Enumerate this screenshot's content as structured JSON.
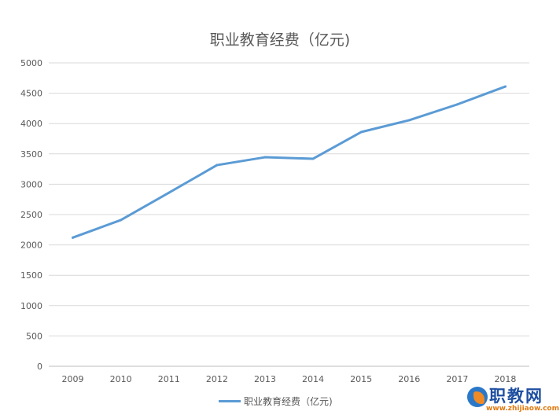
{
  "chart_data": {
    "type": "line",
    "title": "职业教育经费（亿元)",
    "categories": [
      "2009",
      "2010",
      "2011",
      "2012",
      "2013",
      "2014",
      "2015",
      "2016",
      "2017",
      "2018"
    ],
    "series": [
      {
        "name": "职业教育经费（亿元)",
        "values": [
          2120,
          2410,
          2860,
          3315,
          3445,
          3420,
          3860,
          4055,
          4315,
          4610
        ],
        "color": "#5b9bd5"
      }
    ],
    "ylim": [
      0,
      5000
    ],
    "yticks": [
      0,
      500,
      1000,
      1500,
      2000,
      2500,
      3000,
      3500,
      4000,
      4500,
      5000
    ],
    "grid": true,
    "legend_position": "bottom",
    "xlabel": "",
    "ylabel": ""
  },
  "watermark": {
    "text": "职教网",
    "url": "www.zhijiaow.com"
  }
}
